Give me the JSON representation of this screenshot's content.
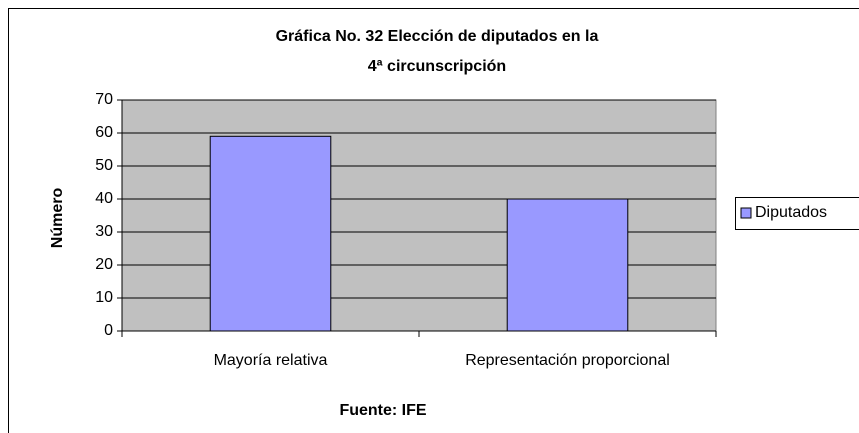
{
  "chart_data": {
    "type": "bar",
    "title": [
      "Gráfica No. 32   Elección de diputados en la",
      "4ª circunscripción"
    ],
    "y_label": "Número",
    "x_label": "Fuente: IFE",
    "categories": [
      "Mayoría relativa",
      "Representación proporcional"
    ],
    "series": [
      {
        "name": "Diputados",
        "color": "#9999ff",
        "values": [
          59,
          40
        ]
      }
    ],
    "ylim": [
      0,
      70
    ],
    "yticks": [
      0,
      10,
      20,
      30,
      40,
      50,
      60,
      70
    ],
    "grid": true,
    "plot_background": "#c0c0c0",
    "legend": "right"
  }
}
